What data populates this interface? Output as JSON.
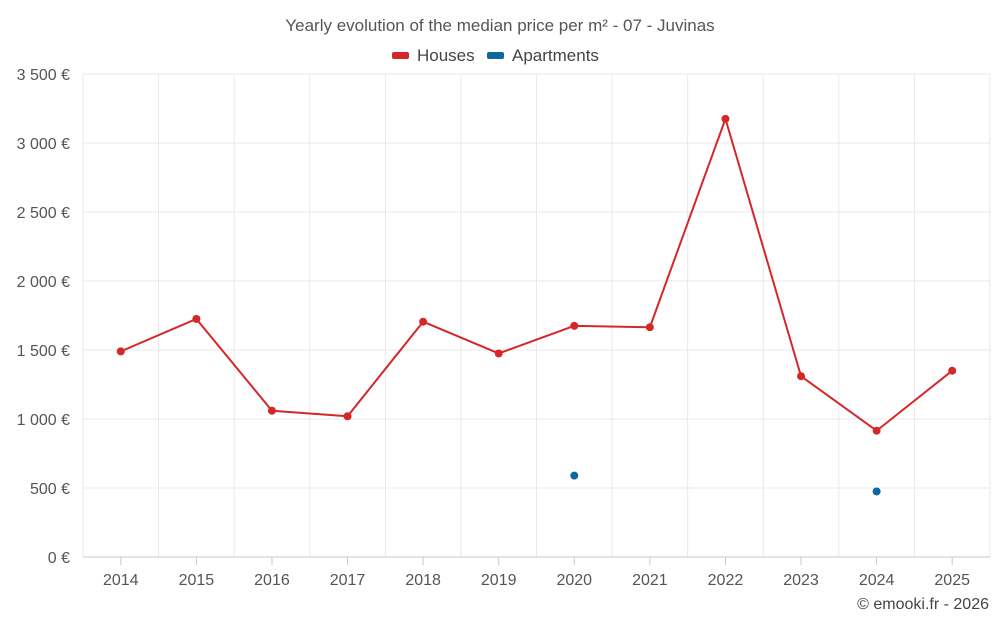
{
  "chart_data": {
    "type": "line",
    "title": "Yearly evolution of the median price per m² - 07 - Juvinas",
    "categories": [
      "2014",
      "2015",
      "2016",
      "2017",
      "2018",
      "2019",
      "2020",
      "2021",
      "2022",
      "2023",
      "2024",
      "2025"
    ],
    "series": [
      {
        "name": "Houses",
        "color": "#d62728",
        "values": [
          1490,
          1725,
          1060,
          1020,
          1705,
          1475,
          1675,
          1665,
          3175,
          1310,
          915,
          1350
        ]
      },
      {
        "name": "Apartments",
        "color": "#0f67a0",
        "values": [
          null,
          null,
          null,
          null,
          null,
          null,
          590,
          null,
          null,
          null,
          475,
          null
        ]
      }
    ],
    "yticks": [
      0,
      500,
      1000,
      1500,
      2000,
      2500,
      3000,
      3500
    ],
    "ytick_labels": [
      "0 €",
      "500 €",
      "1 000 €",
      "1 500 €",
      "2 000 €",
      "2 500 €",
      "3 000 €",
      "3 500 €"
    ],
    "ylim": [
      0,
      3500
    ],
    "xlabel": "",
    "ylabel": "",
    "grid": true,
    "legend_position": "top-center",
    "credit": "© emooki.fr - 2026"
  }
}
